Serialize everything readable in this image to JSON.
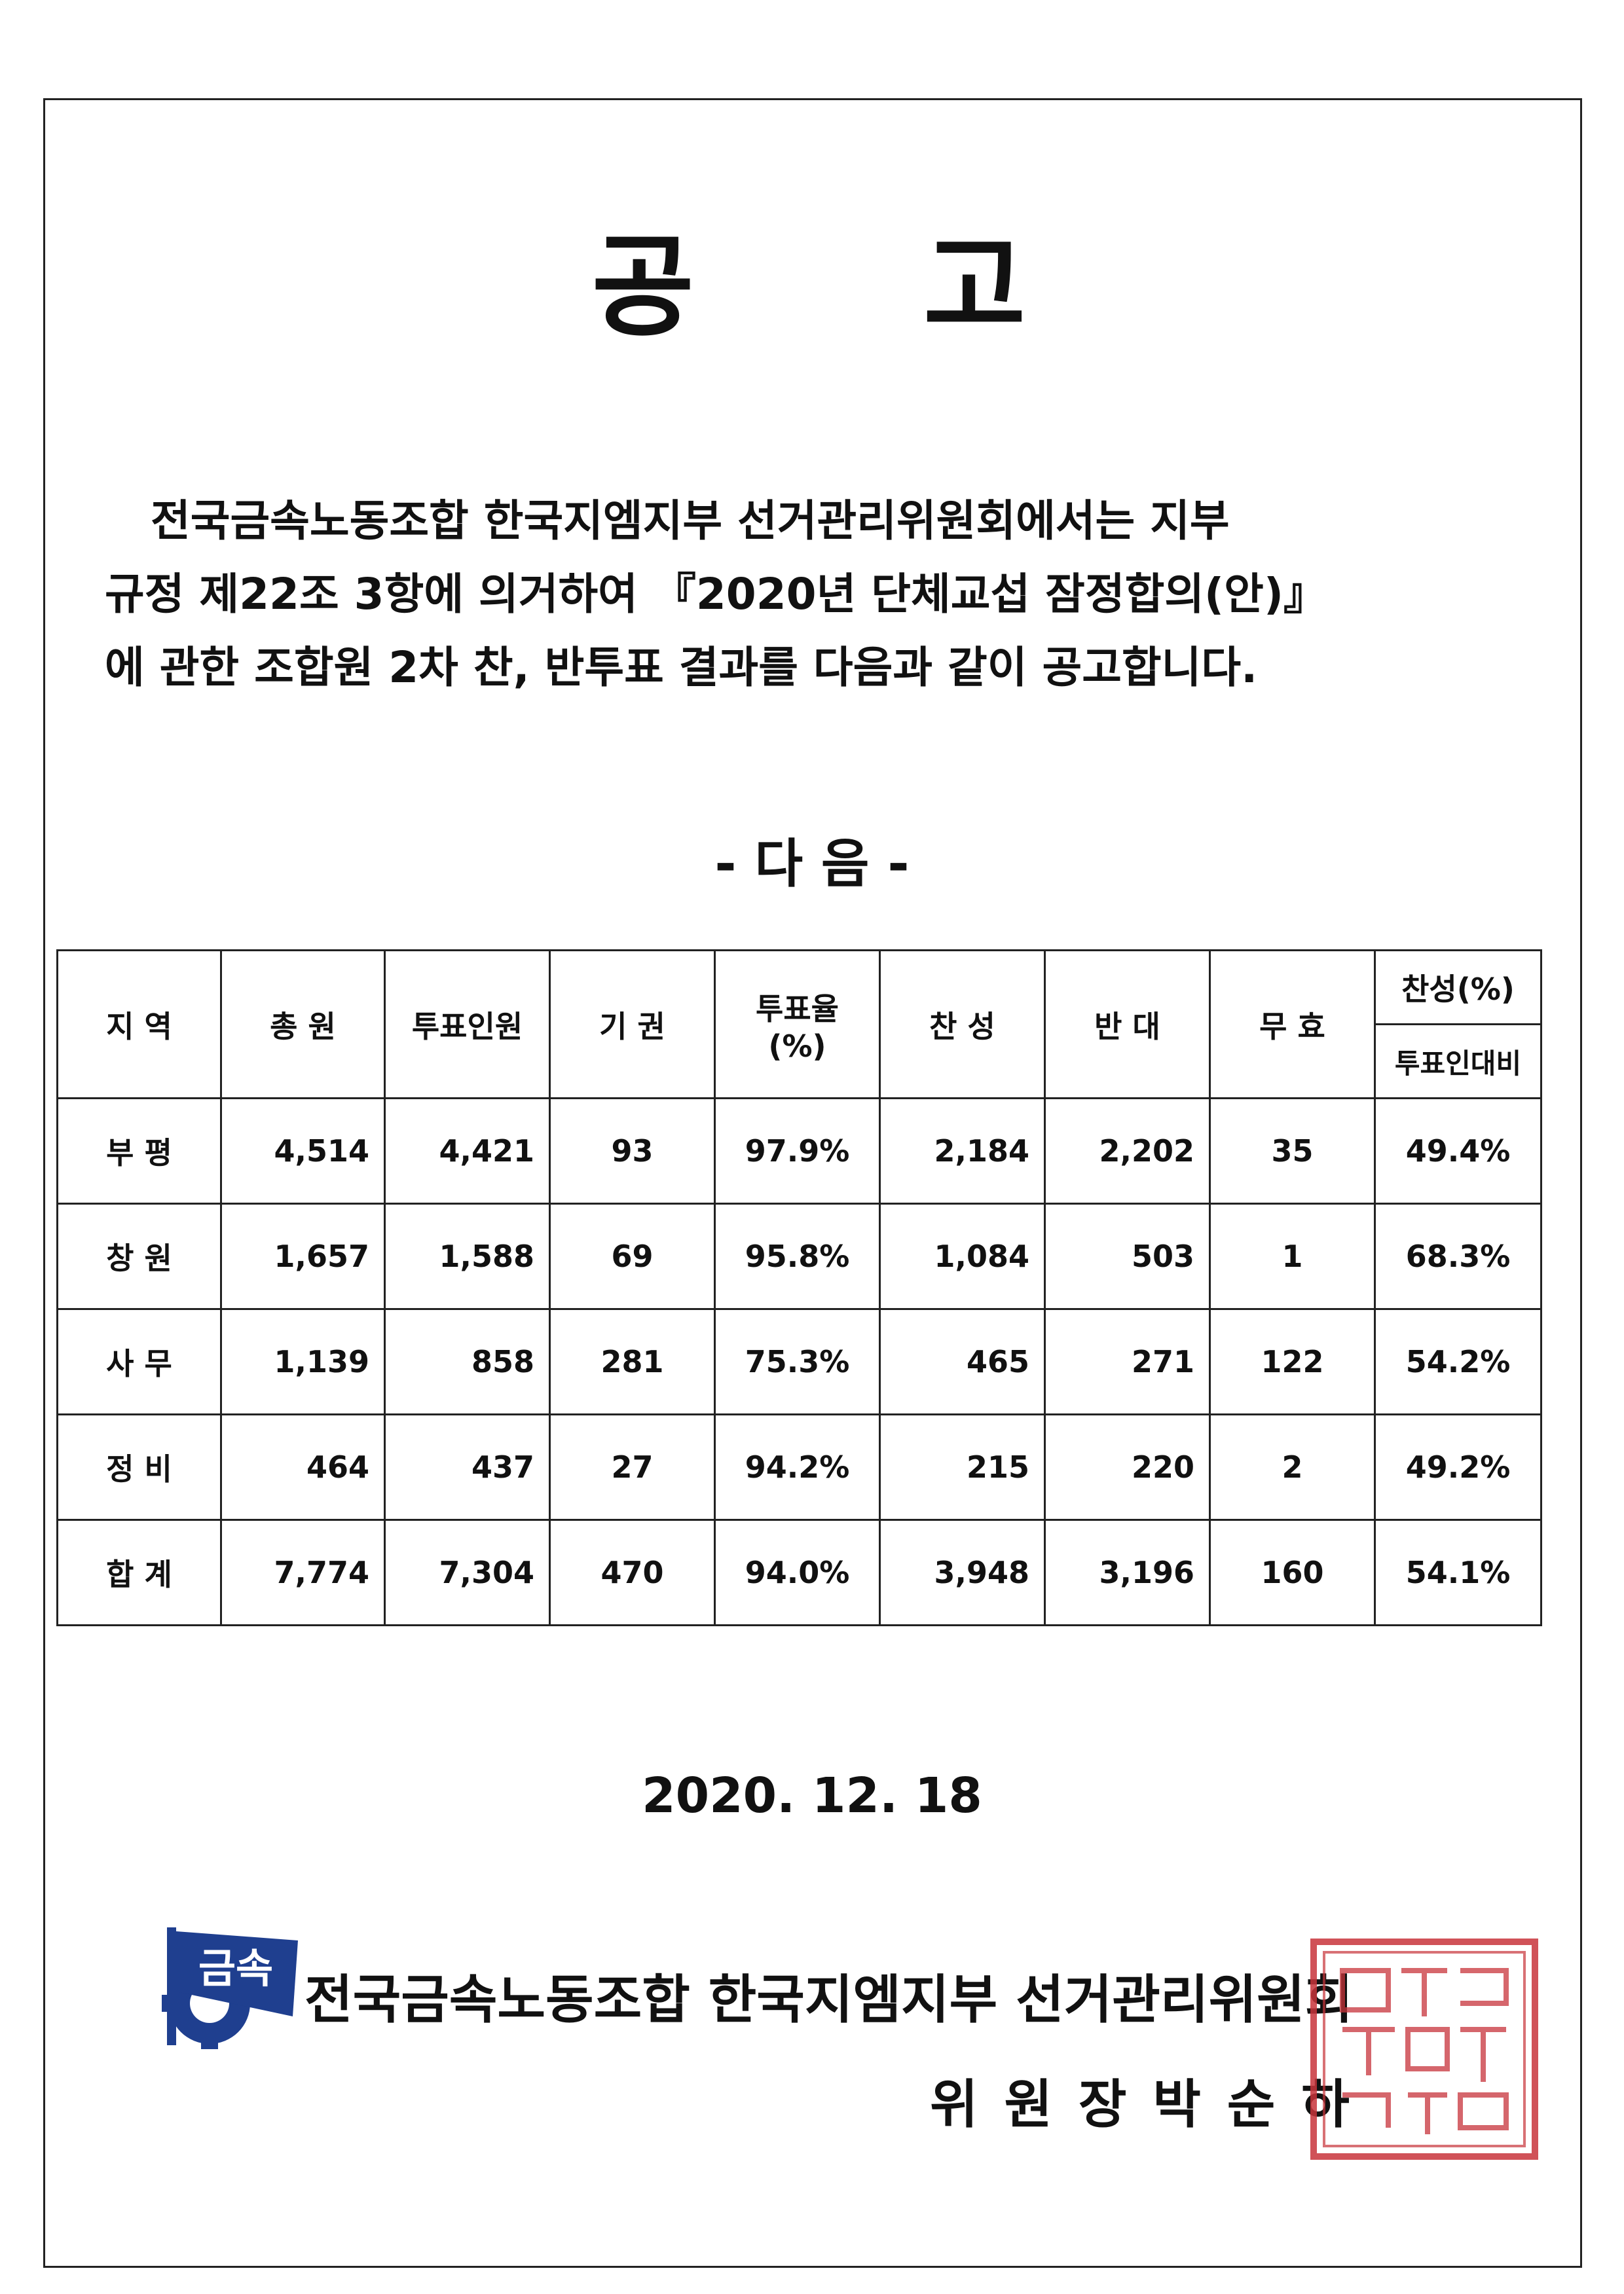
{
  "title": [
    "공",
    "고"
  ],
  "body_lines": [
    "전국금속노동조합 한국지엠지부 선거관리위원회에서는 지부",
    "규정  제22조 3항에 의거하여 『2020년 단체교섭 잠정합의(안)』",
    "에 관한 조합원 2차 찬, 반투표 결과를 다음과 같이 공고합니다."
  ],
  "next_heading": "- 다  음 -",
  "table": {
    "headers": {
      "region": "지 역",
      "total": "총 원",
      "voters": "투표인원",
      "abstain": "기 권",
      "turnout": "투표율(%)",
      "yes": "찬 성",
      "no": "반 대",
      "invalid": "무 효",
      "approval": "찬성(%)",
      "approval_sub": "투표인대비"
    },
    "rows": [
      {
        "region": "부 평",
        "total": "4,514",
        "voters": "4,421",
        "abstain": "93",
        "turnout": "97.9%",
        "yes": "2,184",
        "no": "2,202",
        "invalid": "35",
        "approval": "49.4%"
      },
      {
        "region": "창 원",
        "total": "1,657",
        "voters": "1,588",
        "abstain": "69",
        "turnout": "95.8%",
        "yes": "1,084",
        "no": "503",
        "invalid": "1",
        "approval": "68.3%"
      },
      {
        "region": "사 무",
        "total": "1,139",
        "voters": "858",
        "abstain": "281",
        "turnout": "75.3%",
        "yes": "465",
        "no": "271",
        "invalid": "122",
        "approval": "54.2%"
      },
      {
        "region": "정 비",
        "total": "464",
        "voters": "437",
        "abstain": "27",
        "turnout": "94.2%",
        "yes": "215",
        "no": "220",
        "invalid": "2",
        "approval": "49.2%"
      },
      {
        "region": "합 계",
        "total": "7,774",
        "voters": "7,304",
        "abstain": "470",
        "turnout": "94.0%",
        "yes": "3,948",
        "no": "3,196",
        "invalid": "160",
        "approval": "54.1%"
      }
    ]
  },
  "date": "2020. 12. 18",
  "organization": "전국금속노동조합 한국지엠지부 선거관리위원회",
  "chairman": "위 원 장  박 순 하",
  "logo_text": "금속",
  "colors": {
    "logo_blue": "#1f3f8f",
    "seal_red": "#c8343b",
    "text": "#111111"
  }
}
